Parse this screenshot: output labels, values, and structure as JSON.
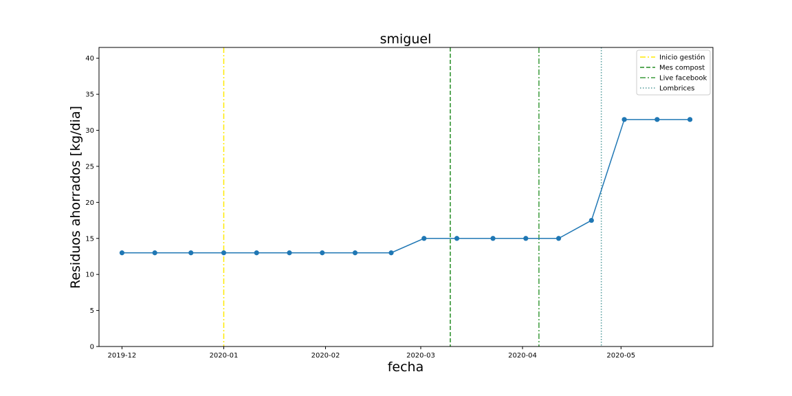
{
  "chart_data": {
    "type": "line",
    "title": "smiguel",
    "xlabel": "fecha",
    "ylabel": "Residuos ahorrados [kg/dia]",
    "x_axis": {
      "type": "date",
      "range": [
        "2019-11-24",
        "2020-05-29"
      ],
      "ticks": [
        {
          "date": "2019-12-01",
          "label": "2019-12"
        },
        {
          "date": "2020-01-01",
          "label": "2020-01"
        },
        {
          "date": "2020-02-01",
          "label": "2020-02"
        },
        {
          "date": "2020-03-01",
          "label": "2020-03"
        },
        {
          "date": "2020-04-01",
          "label": "2020-04"
        },
        {
          "date": "2020-05-01",
          "label": "2020-05"
        }
      ]
    },
    "y_axis": {
      "range": [
        0,
        41.5
      ],
      "ticks": [
        0,
        5,
        10,
        15,
        20,
        25,
        30,
        35,
        40
      ]
    },
    "grid": false,
    "legend_position": "top-right",
    "series": [
      {
        "color": "#1f77b4",
        "marker": "circle",
        "points": [
          {
            "x": "2019-12-01",
            "y": 13
          },
          {
            "x": "2019-12-11",
            "y": 13
          },
          {
            "x": "2019-12-22",
            "y": 13
          },
          {
            "x": "2020-01-01",
            "y": 13
          },
          {
            "x": "2020-01-11",
            "y": 13
          },
          {
            "x": "2020-01-21",
            "y": 13
          },
          {
            "x": "2020-01-31",
            "y": 13
          },
          {
            "x": "2020-02-10",
            "y": 13
          },
          {
            "x": "2020-02-21",
            "y": 13
          },
          {
            "x": "2020-03-02",
            "y": 15
          },
          {
            "x": "2020-03-12",
            "y": 15
          },
          {
            "x": "2020-03-23",
            "y": 15
          },
          {
            "x": "2020-04-02",
            "y": 15
          },
          {
            "x": "2020-04-12",
            "y": 15
          },
          {
            "x": "2020-04-22",
            "y": 17.5
          },
          {
            "x": "2020-05-02",
            "y": 31.5
          },
          {
            "x": "2020-05-12",
            "y": 31.5
          },
          {
            "x": "2020-05-22",
            "y": 31.5
          }
        ]
      }
    ],
    "vlines": [
      {
        "name": "Inicio gestión",
        "x": "2020-01-01",
        "color": "#ffea00",
        "style": "dashdot"
      },
      {
        "name": "Mes compost",
        "x": "2020-03-10",
        "color": "#228b22",
        "style": "dashed"
      },
      {
        "name": "Live facebook",
        "x": "2020-04-06",
        "color": "#3a9a3a",
        "style": "dashdot"
      },
      {
        "name": "Lombrices",
        "x": "2020-04-25",
        "color": "#4f9a9a",
        "style": "dotted"
      }
    ]
  }
}
